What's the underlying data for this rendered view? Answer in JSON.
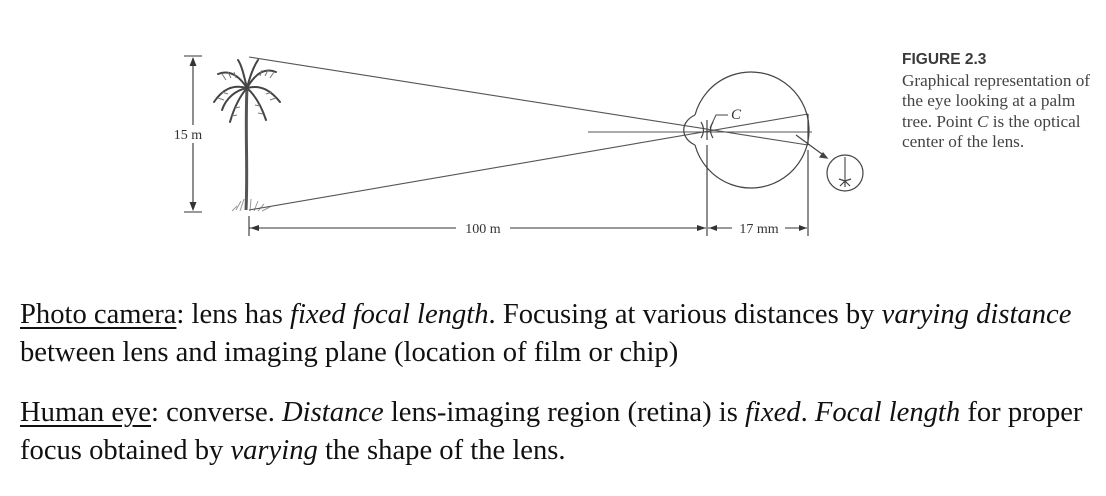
{
  "diagram": {
    "height_label": "15 m",
    "distance_label": "100 m",
    "eye_distance_label": "17 mm",
    "center_label": "C"
  },
  "caption": {
    "figure_label": "FIGURE 2.3",
    "text_before_c": "Graphical representation of the eye looking at a palm tree. Point ",
    "c": "C",
    "text_after_c": " is the optical center of the lens."
  },
  "paragraphs": {
    "camera": {
      "term": "Photo camera",
      "t1": ": lens has ",
      "i1": "fixed focal length",
      "t2": ". Focusing at various distances by ",
      "i2": "varying distance",
      "t3": " between lens and imaging plane (location of film or chip)"
    },
    "eye": {
      "term": "Human eye",
      "t1": ": converse. ",
      "i1": "Distance",
      "t2": " lens-imaging region (retina) is ",
      "i2": "fixed",
      "t3": ". ",
      "i3": "Focal length",
      "t4": " for proper focus obtained by ",
      "i4": "varying",
      "t5": " the shape of the lens."
    }
  }
}
